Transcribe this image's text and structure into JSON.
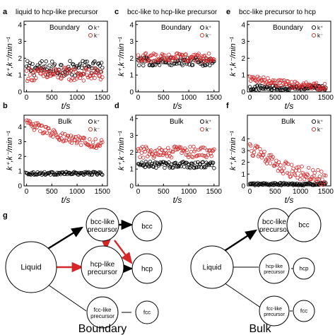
{
  "figure": {
    "colors": {
      "black_series": "#000000",
      "red_series": "#d62728",
      "red_arrow": "#d62728"
    },
    "y_label": "k⁺,k⁻/min⁻¹",
    "x_label": "t/s",
    "y_ticks": [
      "0",
      "1",
      "2",
      "3",
      "4"
    ],
    "x_ticks": [
      "0",
      "500",
      "1000",
      "1500"
    ],
    "legend": [
      "k⁺",
      "k⁻"
    ],
    "headers": [
      {
        "letter": "a",
        "text": "liquid to hcp-like precursor"
      },
      {
        "letter": "c",
        "text": "bcc-like to hcp-like precursor"
      },
      {
        "letter": "e",
        "text": "bcc-like precursor to hcp"
      }
    ],
    "row_letters": [
      "b",
      "d",
      "f"
    ],
    "panel_g": {
      "letter": "g",
      "boundary_caption": "Boundary",
      "bulk_caption": "Bulk",
      "nodes": {
        "liquid": "Liquid",
        "bcc_precursor": "bcc-like precursor",
        "hcp_precursor": "hcp-like precursor",
        "fcc_precursor": "fcc-like precursor",
        "bcc": "bcc",
        "hcp": "hcp",
        "fcc": "fcc"
      }
    }
  },
  "chart_data": [
    {
      "panel": "a",
      "type": "scatter",
      "title": "Boundary",
      "xlabel": "t/s",
      "ylabel": "k⁺,k⁻/min⁻¹",
      "xlim": [
        -50,
        1600
      ],
      "ylim": [
        0,
        4.2
      ],
      "series": [
        {
          "name": "k⁺",
          "mean": 1.4,
          "spread": 0.45,
          "trend": 0.0,
          "color": "black"
        },
        {
          "name": "k⁻",
          "mean": 1.05,
          "spread": 0.4,
          "trend": 0.0,
          "color": "red"
        }
      ]
    },
    {
      "panel": "b",
      "type": "scatter",
      "title": "Bulk",
      "xlabel": "t/s",
      "ylabel": "k⁺,k⁻/min⁻¹",
      "xlim": [
        -50,
        1600
      ],
      "ylim": [
        0,
        4.8
      ],
      "series": [
        {
          "name": "k⁺",
          "mean": 0.85,
          "spread": 0.1,
          "trend": 0.0,
          "color": "black"
        },
        {
          "name": "k⁻",
          "mean": 4.3,
          "spread": 0.3,
          "trend": -1.5,
          "color": "red"
        }
      ]
    },
    {
      "panel": "c",
      "type": "scatter",
      "title": "Boundary",
      "xlabel": "t/s",
      "ylabel": "k⁺,k⁻/min⁻¹",
      "xlim": [
        -50,
        1600
      ],
      "ylim": [
        0,
        4.2
      ],
      "series": [
        {
          "name": "k⁺",
          "mean": 1.8,
          "spread": 0.25,
          "trend": 0.0,
          "color": "black"
        },
        {
          "name": "k⁻",
          "mean": 2.05,
          "spread": 0.25,
          "trend": 0.0,
          "color": "red"
        }
      ]
    },
    {
      "panel": "d",
      "type": "scatter",
      "title": "Bulk",
      "xlabel": "t/s",
      "ylabel": "k⁺,k⁻/min⁻¹",
      "xlim": [
        -50,
        1600
      ],
      "ylim": [
        0,
        4.2
      ],
      "series": [
        {
          "name": "k⁺",
          "mean": 1.25,
          "spread": 0.2,
          "trend": 0.0,
          "color": "black"
        },
        {
          "name": "k⁻",
          "mean": 2.0,
          "spread": 0.35,
          "trend": 0.0,
          "color": "red"
        }
      ]
    },
    {
      "panel": "e",
      "type": "scatter",
      "title": "Boundary",
      "xlabel": "t/s",
      "ylabel": "k⁺,k⁻/min⁻¹",
      "xlim": [
        -50,
        1600
      ],
      "ylim": [
        0,
        4.2
      ],
      "series": [
        {
          "name": "k⁺",
          "mean": 0.25,
          "spread": 0.15,
          "trend": 0.0,
          "color": "black"
        },
        {
          "name": "k⁻",
          "mean": 0.8,
          "spread": 0.2,
          "trend": -0.5,
          "color": "red"
        }
      ]
    },
    {
      "panel": "f",
      "type": "scatter",
      "title": "Bulk",
      "xlabel": "t/s",
      "ylabel": "k⁺,k⁻/min⁻¹",
      "xlim": [
        -50,
        1600
      ],
      "ylim": [
        0,
        6
      ],
      "series": [
        {
          "name": "k⁺",
          "mean": 0.15,
          "spread": 0.1,
          "trend": 0.0,
          "color": "black"
        },
        {
          "name": "k⁻",
          "mean": 3.2,
          "spread": 0.6,
          "trend": -2.6,
          "color": "red"
        }
      ]
    }
  ]
}
